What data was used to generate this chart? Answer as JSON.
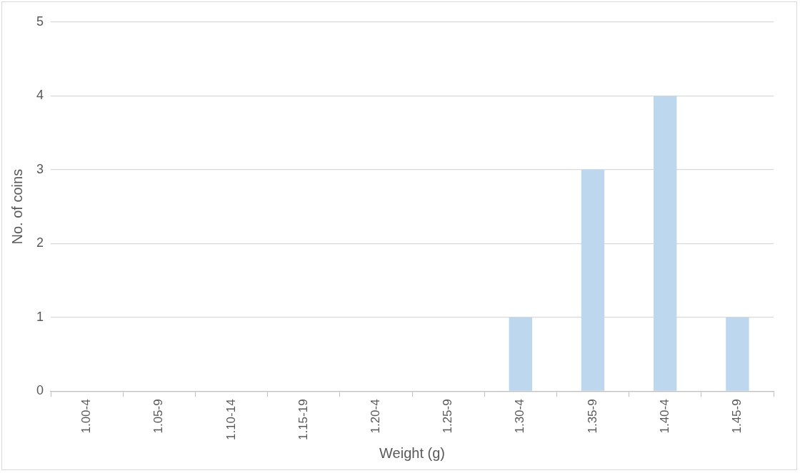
{
  "chart_data": {
    "type": "bar",
    "xlabel": "Weight (g)",
    "ylabel": "No. of coins",
    "categories": [
      "1.00-4",
      "1.05-9",
      "1.10-14",
      "1.15-19",
      "1.20-4",
      "1.25-9",
      "1.30-4",
      "1.35-9",
      "1.40-4",
      "1.45-9"
    ],
    "values": [
      0,
      0,
      0,
      0,
      0,
      0,
      1,
      3,
      4,
      1
    ],
    "color": "#bdd7ee",
    "ylim": [
      0,
      5
    ],
    "yticks": [
      0,
      1,
      2,
      3,
      4,
      5
    ],
    "grid": "y",
    "legend": false
  }
}
